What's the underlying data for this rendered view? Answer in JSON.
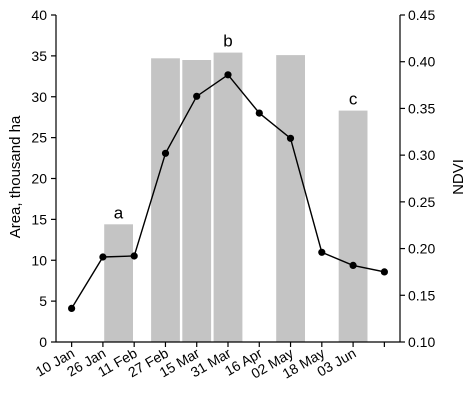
{
  "chart_data": {
    "type": "bar+line",
    "categories": [
      "10 Jan",
      "26 Jan",
      "11 Feb",
      "27 Feb",
      "15 Mar",
      "31 Mar",
      "16 Apr",
      "02 May",
      "18 May",
      "03 Jun"
    ],
    "left_axis": {
      "label": "Area, thousand ha",
      "ylim": [
        0,
        40
      ],
      "ticks": [
        "0",
        "5",
        "10",
        "15",
        "20",
        "25",
        "30",
        "35",
        "40"
      ],
      "tick_values": [
        0,
        5,
        10,
        15,
        20,
        25,
        30,
        35,
        40
      ]
    },
    "right_axis": {
      "label": "NDVI",
      "ylim": [
        0.1,
        0.45
      ],
      "ticks": [
        "0.10",
        "0.15",
        "0.20",
        "0.25",
        "0.30",
        "0.35",
        "0.40",
        "0.45"
      ],
      "tick_values": [
        0.1,
        0.15,
        0.2,
        0.25,
        0.3,
        0.35,
        0.4,
        0.45
      ]
    },
    "bars": [
      {
        "x": 1.5,
        "value": 14.4
      },
      {
        "x": 3.0,
        "value": 34.7
      },
      {
        "x": 4.0,
        "value": 34.5
      },
      {
        "x": 5.0,
        "value": 35.4
      },
      {
        "x": 7.0,
        "value": 35.1
      },
      {
        "x": 9.0,
        "value": 28.3
      }
    ],
    "bar_annotations": [
      {
        "text": "a",
        "bar": 0
      },
      {
        "text": "b",
        "bar": 3
      },
      {
        "text": "c",
        "bar": 5
      }
    ],
    "ndvi": {
      "x": [
        0,
        1,
        2,
        3,
        4,
        5,
        6,
        7,
        8,
        9,
        10
      ],
      "values": [
        0.136,
        0.191,
        0.192,
        0.302,
        0.363,
        0.386,
        0.345,
        0.318,
        0.196,
        0.182,
        0.175
      ]
    },
    "colors": {
      "bars": "#c4c4c4",
      "line": "#000000"
    },
    "grid": false,
    "legend": "none"
  }
}
